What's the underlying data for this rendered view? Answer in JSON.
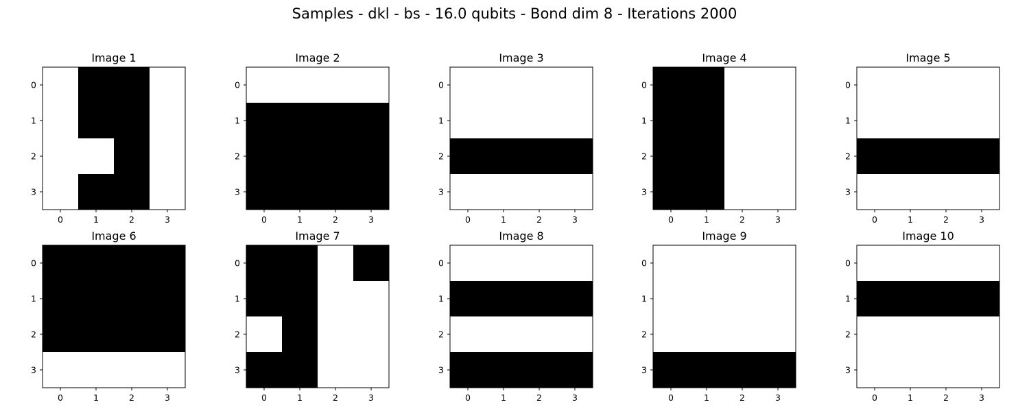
{
  "figure": {
    "title": "Samples - dkl - bs - 16.0 qubits - Bond dim 8 - Iterations 2000"
  },
  "chart_data": {
    "type": "heatmap",
    "colormap": {
      "0": "#ffffff",
      "1": "#000000"
    },
    "x_ticks": [
      "0",
      "1",
      "2",
      "3"
    ],
    "y_ticks": [
      "0",
      "1",
      "2",
      "3"
    ],
    "panels": [
      {
        "title": "Image 1",
        "grid": [
          [
            0,
            1,
            1,
            0
          ],
          [
            0,
            1,
            1,
            0
          ],
          [
            0,
            0,
            1,
            0
          ],
          [
            0,
            1,
            1,
            0
          ]
        ]
      },
      {
        "title": "Image 2",
        "grid": [
          [
            0,
            0,
            0,
            0
          ],
          [
            1,
            1,
            1,
            1
          ],
          [
            1,
            1,
            1,
            1
          ],
          [
            1,
            1,
            1,
            1
          ]
        ]
      },
      {
        "title": "Image 3",
        "grid": [
          [
            0,
            0,
            0,
            0
          ],
          [
            0,
            0,
            0,
            0
          ],
          [
            1,
            1,
            1,
            1
          ],
          [
            0,
            0,
            0,
            0
          ]
        ]
      },
      {
        "title": "Image 4",
        "grid": [
          [
            1,
            1,
            0,
            0
          ],
          [
            1,
            1,
            0,
            0
          ],
          [
            1,
            1,
            0,
            0
          ],
          [
            1,
            1,
            0,
            0
          ]
        ]
      },
      {
        "title": "Image 5",
        "grid": [
          [
            0,
            0,
            0,
            0
          ],
          [
            0,
            0,
            0,
            0
          ],
          [
            1,
            1,
            1,
            1
          ],
          [
            0,
            0,
            0,
            0
          ]
        ]
      },
      {
        "title": "Image 6",
        "grid": [
          [
            1,
            1,
            1,
            1
          ],
          [
            1,
            1,
            1,
            1
          ],
          [
            1,
            1,
            1,
            1
          ],
          [
            0,
            0,
            0,
            0
          ]
        ]
      },
      {
        "title": "Image 7",
        "grid": [
          [
            1,
            1,
            0,
            1
          ],
          [
            1,
            1,
            0,
            0
          ],
          [
            0,
            1,
            0,
            0
          ],
          [
            1,
            1,
            0,
            0
          ]
        ]
      },
      {
        "title": "Image 8",
        "grid": [
          [
            0,
            0,
            0,
            0
          ],
          [
            1,
            1,
            1,
            1
          ],
          [
            0,
            0,
            0,
            0
          ],
          [
            1,
            1,
            1,
            1
          ]
        ]
      },
      {
        "title": "Image 9",
        "grid": [
          [
            0,
            0,
            0,
            0
          ],
          [
            0,
            0,
            0,
            0
          ],
          [
            0,
            0,
            0,
            0
          ],
          [
            1,
            1,
            1,
            1
          ]
        ]
      },
      {
        "title": "Image 10",
        "grid": [
          [
            0,
            0,
            0,
            0
          ],
          [
            1,
            1,
            1,
            1
          ],
          [
            0,
            0,
            0,
            0
          ],
          [
            0,
            0,
            0,
            0
          ]
        ]
      }
    ]
  }
}
